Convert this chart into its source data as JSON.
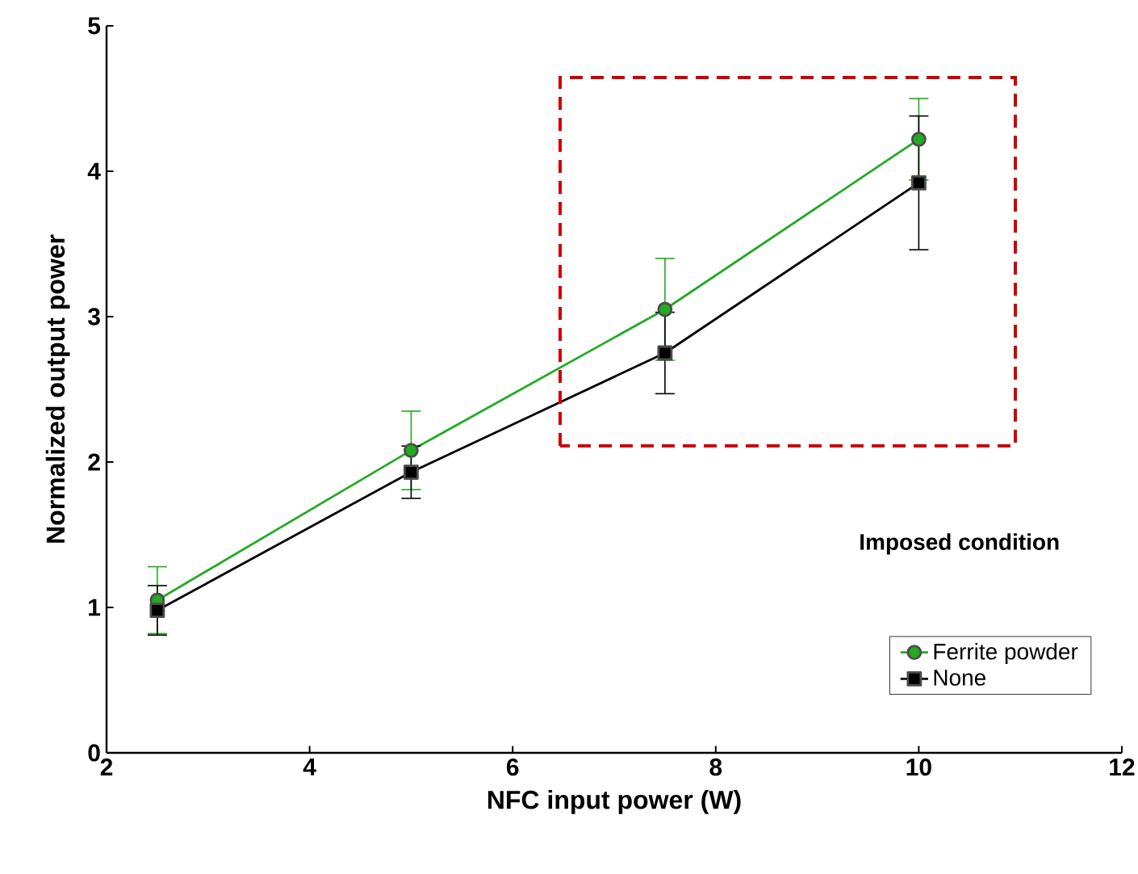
{
  "chart_data": {
    "type": "line",
    "xlabel": "NFC input power (W)",
    "ylabel": "Normalized output power",
    "legend_title": "Imposed condition",
    "x": [
      2.5,
      5,
      7.5,
      10
    ],
    "series": [
      {
        "name": "Ferrite powder",
        "color": "#22aa22",
        "marker": "circle",
        "values": [
          1.05,
          2.08,
          3.05,
          4.22
        ],
        "errors": [
          0.23,
          0.27,
          0.35,
          0.28
        ]
      },
      {
        "name": "None",
        "color": "#000000",
        "marker": "square",
        "values": [
          0.98,
          1.93,
          2.75,
          3.92
        ],
        "errors": [
          0.17,
          0.18,
          0.28,
          0.46
        ]
      }
    ],
    "xlim": [
      2,
      12
    ],
    "xticks": [
      2,
      4,
      6,
      8,
      10,
      12
    ],
    "ylim": [
      0,
      5
    ],
    "yticks": [
      0,
      1,
      2,
      3,
      4,
      5
    ],
    "grid": false,
    "legend": "bottom right",
    "line_style": "solid"
  }
}
